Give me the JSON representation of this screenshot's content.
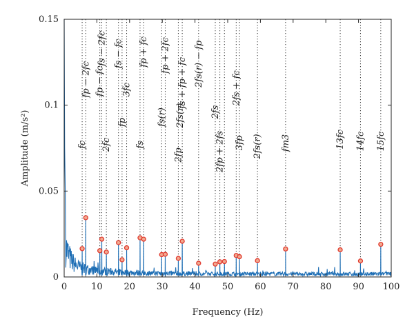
{
  "chart_data": {
    "type": "line",
    "xlabel": "Frequency (Hz)",
    "ylabel": "Amplitude (m/s²)",
    "xlim": [
      0,
      100
    ],
    "ylim": [
      0,
      0.15
    ],
    "xticks": [
      "0",
      "10",
      "20",
      "30",
      "40",
      "50",
      "60",
      "70",
      "80",
      "90",
      "100"
    ],
    "yticks": [
      "0",
      "0.05",
      "0.1",
      "0.15"
    ],
    "series_color": "#1f6fb5",
    "marker_color": "#e03a2f",
    "grid": false,
    "series": [
      {
        "peaks": [
          {
            "x": 5.5,
            "y": 0.0165
          },
          {
            "x": 6.6,
            "y": 0.0345
          },
          {
            "x": 10.9,
            "y": 0.0153
          },
          {
            "x": 11.5,
            "y": 0.022
          },
          {
            "x": 12.9,
            "y": 0.0145
          },
          {
            "x": 16.6,
            "y": 0.02
          },
          {
            "x": 17.7,
            "y": 0.01
          },
          {
            "x": 19.1,
            "y": 0.017
          },
          {
            "x": 23.2,
            "y": 0.0228
          },
          {
            "x": 24.3,
            "y": 0.022
          },
          {
            "x": 29.8,
            "y": 0.013
          },
          {
            "x": 30.9,
            "y": 0.0132
          },
          {
            "x": 34.9,
            "y": 0.0108
          },
          {
            "x": 36.1,
            "y": 0.0208
          },
          {
            "x": 41.1,
            "y": 0.008
          },
          {
            "x": 46.2,
            "y": 0.0075
          },
          {
            "x": 47.6,
            "y": 0.0088
          },
          {
            "x": 49.0,
            "y": 0.009
          },
          {
            "x": 52.6,
            "y": 0.0125
          },
          {
            "x": 53.6,
            "y": 0.0118
          },
          {
            "x": 59.1,
            "y": 0.0095
          },
          {
            "x": 67.7,
            "y": 0.0163
          },
          {
            "x": 84.4,
            "y": 0.0158
          },
          {
            "x": 90.6,
            "y": 0.0093
          },
          {
            "x": 96.8,
            "y": 0.019
          }
        ]
      }
    ],
    "annotations": [
      {
        "x": 5.5,
        "y": 0.077,
        "label": "fc"
      },
      {
        "x": 6.6,
        "y": 0.115,
        "label": "fp − 2fc"
      },
      {
        "x": 10.9,
        "y": 0.114,
        "label": "fp − fc"
      },
      {
        "x": 11.5,
        "y": 0.133,
        "label": "fs − 2fc"
      },
      {
        "x": 12.9,
        "y": 0.077,
        "label": "2fc"
      },
      {
        "x": 16.6,
        "y": 0.13,
        "label": "fs − fc"
      },
      {
        "x": 17.7,
        "y": 0.09,
        "label": "fp"
      },
      {
        "x": 19.1,
        "y": 0.109,
        "label": "3fc"
      },
      {
        "x": 23.2,
        "y": 0.077,
        "label": "fs"
      },
      {
        "x": 24.3,
        "y": 0.131,
        "label": "fp + fc"
      },
      {
        "x": 29.8,
        "y": 0.093,
        "label": "fs(r)"
      },
      {
        "x": 30.9,
        "y": 0.129,
        "label": "fp + 2fc"
      },
      {
        "x": 34.9,
        "y": 0.071,
        "label": "2fp"
      },
      {
        "x": 35.4,
        "y": 0.094,
        "label": "2fs(r)"
      },
      {
        "x": 36.1,
        "y": 0.113,
        "label": "fs + fp + fc"
      },
      {
        "x": 41.1,
        "y": 0.124,
        "label": "2fs(r) − fp"
      },
      {
        "x": 46.2,
        "y": 0.096,
        "label": "2fs"
      },
      {
        "x": 47.6,
        "y": 0.073,
        "label": "2fp + 2fs"
      },
      {
        "x": 52.6,
        "y": 0.11,
        "label": "2fs + fc"
      },
      {
        "x": 53.6,
        "y": 0.078,
        "label": "3fp"
      },
      {
        "x": 59.1,
        "y": 0.076,
        "label": "2fs(r)"
      },
      {
        "x": 67.7,
        "y": 0.078,
        "label": "fm3"
      },
      {
        "x": 84.4,
        "y": 0.08,
        "label": "13fc"
      },
      {
        "x": 90.6,
        "y": 0.079,
        "label": "14fc"
      },
      {
        "x": 96.8,
        "y": 0.079,
        "label": "15fc"
      }
    ]
  }
}
